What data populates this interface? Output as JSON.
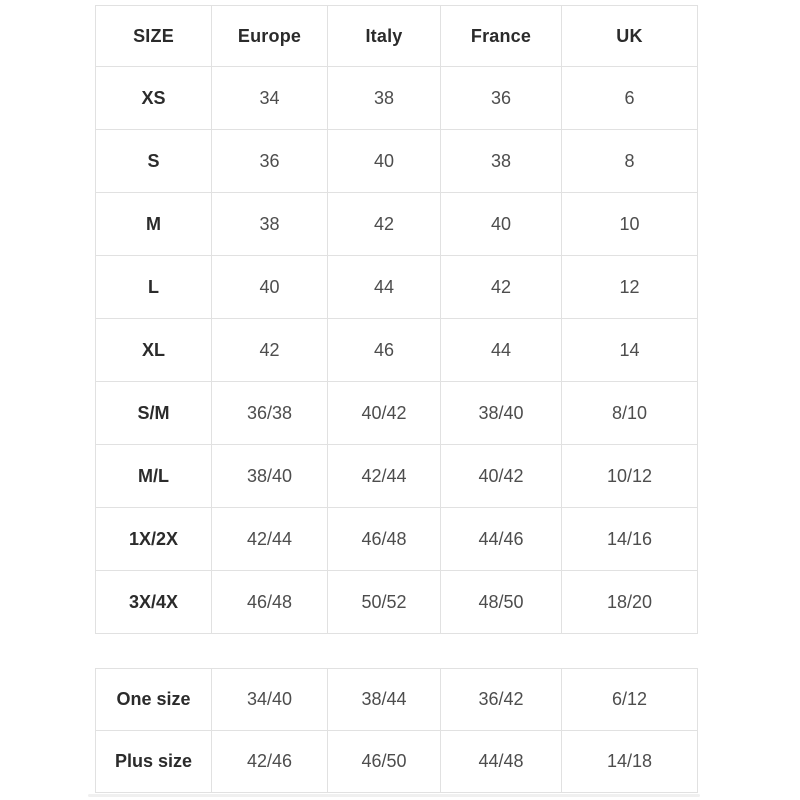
{
  "colors": {
    "background": "#ffffff",
    "border": "#e1e1e1",
    "label_text": "#2b2b2b",
    "value_text": "#4d4d4d"
  },
  "chart_data": [
    {
      "type": "table",
      "name": "size-conversion-table",
      "columns": [
        "SIZE",
        "Europe",
        "Italy",
        "France",
        "UK"
      ],
      "rows": [
        [
          "XS",
          "34",
          "38",
          "36",
          "6"
        ],
        [
          "S",
          "36",
          "40",
          "38",
          "8"
        ],
        [
          "M",
          "38",
          "42",
          "40",
          "10"
        ],
        [
          "L",
          "40",
          "44",
          "42",
          "12"
        ],
        [
          "XL",
          "42",
          "46",
          "44",
          "14"
        ],
        [
          "S/M",
          "36/38",
          "40/42",
          "38/40",
          "8/10"
        ],
        [
          "M/L",
          "38/40",
          "42/44",
          "40/42",
          "10/12"
        ],
        [
          "1X/2X",
          "42/44",
          "46/48",
          "44/46",
          "14/16"
        ],
        [
          "3X/4X",
          "46/48",
          "50/52",
          "48/50",
          "18/20"
        ]
      ],
      "layout": {
        "grid": true,
        "header_row": true,
        "first_column_bold": true
      }
    },
    {
      "type": "table",
      "name": "special-size-table",
      "columns": null,
      "rows": [
        [
          "One size",
          "34/40",
          "38/44",
          "36/42",
          "6/12"
        ],
        [
          "Plus size",
          "42/46",
          "46/50",
          "44/48",
          "14/18"
        ]
      ],
      "layout": {
        "grid": true,
        "header_row": false,
        "first_column_bold": true
      }
    }
  ]
}
